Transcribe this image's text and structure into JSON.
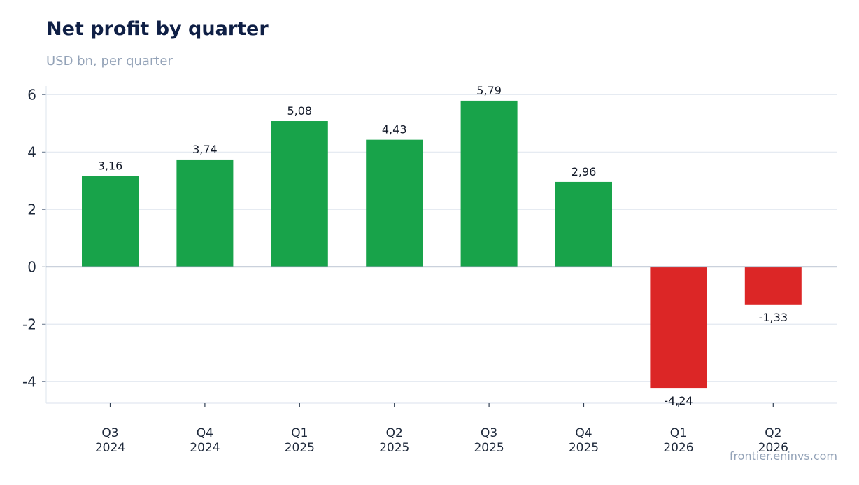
{
  "title": "Net profit by quarter",
  "subtitle": "USD bn, per quarter",
  "watermark": "frontier.eninvs.com",
  "colors": {
    "positive": "#18a34a",
    "negative": "#dc2626",
    "grid": "#e2e8f0",
    "zero_line": "#94a3b8",
    "axis_text": "#1e293b",
    "label_text": "#111827"
  },
  "chart_data": {
    "type": "bar",
    "categories": [
      [
        "Q3",
        "2024"
      ],
      [
        "Q4",
        "2024"
      ],
      [
        "Q1",
        "2025"
      ],
      [
        "Q2",
        "2025"
      ],
      [
        "Q3",
        "2025"
      ],
      [
        "Q4",
        "2025"
      ],
      [
        "Q1",
        "2026"
      ],
      [
        "Q2",
        "2026"
      ]
    ],
    "values": [
      3.16,
      3.74,
      5.08,
      4.43,
      5.79,
      2.96,
      -4.24,
      -1.33
    ],
    "data_labels": [
      "3,16",
      "3,74",
      "5,08",
      "4,43",
      "5,79",
      "2,96",
      "-4,24",
      "-1,33"
    ],
    "yticks": [
      6,
      4,
      2,
      0,
      -2,
      -4
    ],
    "ytick_labels": [
      "6",
      "4",
      "2",
      "0",
      "-2",
      "-4"
    ],
    "ylim": [
      -4.75,
      6.3
    ],
    "grid": true,
    "legend": "none"
  }
}
